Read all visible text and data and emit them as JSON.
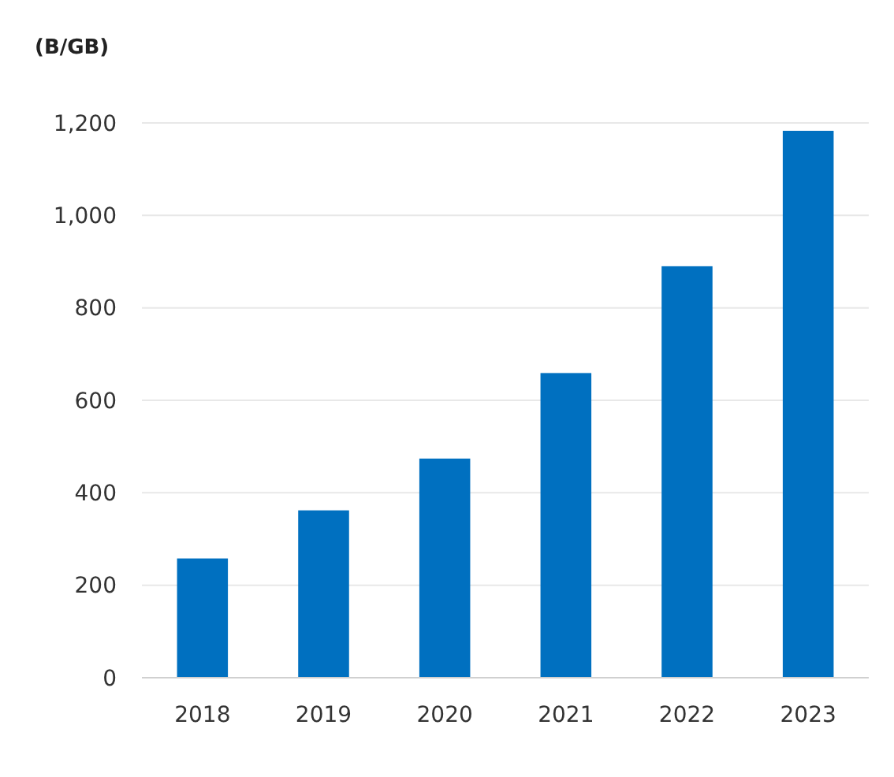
{
  "chart_data": {
    "type": "bar",
    "ylabel": "(B/GB)",
    "categories": [
      "2018",
      "2019",
      "2020",
      "2021",
      "2022",
      "2023"
    ],
    "values": [
      258,
      362,
      474,
      659,
      890,
      1183
    ],
    "color": "#0070c0",
    "ylim": [
      0,
      1200
    ],
    "yticks": [
      0,
      200,
      400,
      600,
      800,
      {
        "value": 1000,
        "label": "1,000"
      },
      {
        "value": 1200,
        "label": "1,200"
      }
    ],
    "grid": "y"
  }
}
